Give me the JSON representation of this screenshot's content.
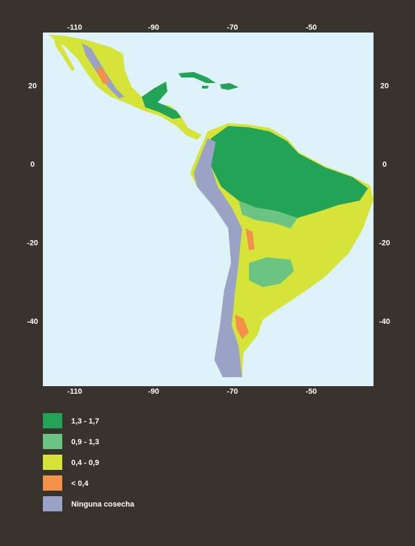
{
  "map": {
    "xticks": [
      -110,
      -90,
      -70,
      -50
    ],
    "yticks": [
      20,
      0,
      -20,
      -40
    ],
    "legend": [
      {
        "label": "1,3 - 1,7",
        "color": "#23a356"
      },
      {
        "label": "0,9 - 1,3",
        "color": "#6cc483"
      },
      {
        "label": "0,4 - 0,9",
        "color": "#d6e43a"
      },
      {
        "label": "< 0,4",
        "color": "#f4904a"
      },
      {
        "label": "Ninguna cosecha",
        "color": "#9aa3c6"
      }
    ]
  }
}
